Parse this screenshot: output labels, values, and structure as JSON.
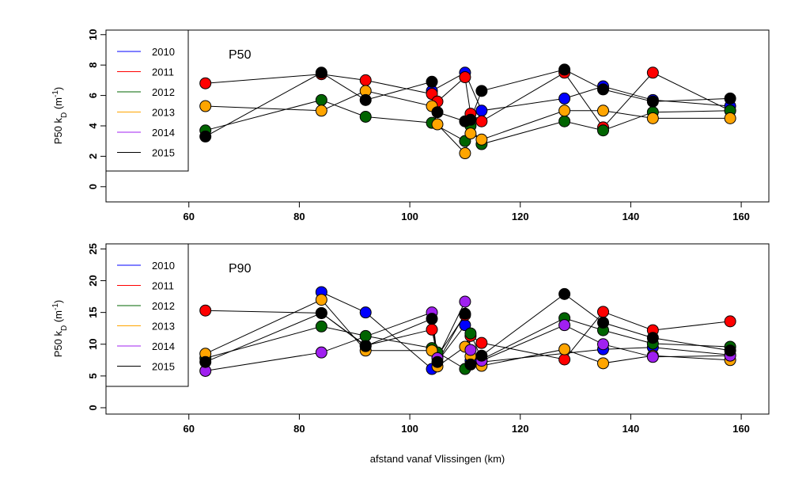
{
  "chart_data": [
    {
      "type": "scatter",
      "title": "",
      "annotation": "P50",
      "ylabel_main": "P50 k",
      "ylabel_sub": "D",
      "ylabel_unit": " (m",
      "ylabel_exp": "-1",
      "ylabel_close": ")",
      "xlabel": "",
      "xlim": [
        45,
        165
      ],
      "ylim": [
        -1,
        10.3
      ],
      "x_ticks": [
        60,
        80,
        100,
        120,
        140,
        160
      ],
      "y_ticks": [
        0,
        2,
        4,
        6,
        8,
        10
      ],
      "legend_position": "top-left",
      "connectors": "black line from each point to the next point of the same series",
      "series": [
        {
          "name": "2010",
          "color": "#0000ff",
          "points": [
            [
              104,
              6.3
            ],
            [
              110,
              7.5
            ],
            [
              113,
              5.0
            ],
            [
              128,
              5.8
            ],
            [
              135,
              6.6
            ],
            [
              144,
              5.7
            ],
            [
              158,
              5.3
            ]
          ]
        },
        {
          "name": "2011",
          "color": "#ff0000",
          "points": [
            [
              63,
              6.8
            ],
            [
              84,
              7.4
            ],
            [
              92,
              7.0
            ],
            [
              104,
              6.1
            ],
            [
              105,
              5.6
            ],
            [
              110,
              7.2
            ],
            [
              111,
              4.8
            ],
            [
              113,
              4.3
            ],
            [
              128,
              7.5
            ],
            [
              135,
              3.9
            ],
            [
              144,
              7.5
            ],
            [
              158,
              5.0
            ]
          ]
        },
        {
          "name": "2012",
          "color": "#006400",
          "points": [
            [
              63,
              3.7
            ],
            [
              84,
              5.7
            ],
            [
              92,
              4.6
            ],
            [
              104,
              4.2
            ],
            [
              110,
              3.0
            ],
            [
              111,
              4.0
            ],
            [
              113,
              2.8
            ],
            [
              128,
              4.3
            ],
            [
              135,
              3.7
            ],
            [
              144,
              4.9
            ],
            [
              158,
              5.0
            ]
          ]
        },
        {
          "name": "2013",
          "color": "#ffa500",
          "points": [
            [
              63,
              5.3
            ],
            [
              84,
              5.0
            ],
            [
              92,
              6.3
            ],
            [
              104,
              5.3
            ],
            [
              105,
              4.1
            ],
            [
              110,
              2.2
            ],
            [
              111,
              3.5
            ],
            [
              113,
              3.1
            ],
            [
              128,
              5.0
            ],
            [
              135,
              5.0
            ],
            [
              144,
              4.5
            ],
            [
              158,
              4.5
            ]
          ]
        },
        {
          "name": "2014",
          "color": "#a020f0",
          "points": []
        },
        {
          "name": "2015",
          "color": "#000000",
          "points": [
            [
              63,
              3.3
            ],
            [
              84,
              7.5
            ],
            [
              92,
              5.7
            ],
            [
              104,
              6.9
            ],
            [
              105,
              4.9
            ],
            [
              110,
              4.3
            ],
            [
              111,
              4.4
            ],
            [
              113,
              6.3
            ],
            [
              128,
              7.7
            ],
            [
              135,
              6.4
            ],
            [
              144,
              5.6
            ],
            [
              158,
              5.8
            ]
          ]
        }
      ]
    },
    {
      "type": "scatter",
      "title": "",
      "annotation": "P90",
      "ylabel_main": "P50 k",
      "ylabel_sub": "D",
      "ylabel_unit": " (m",
      "ylabel_exp": "-1",
      "ylabel_close": ")",
      "xlabel": "afstand vanaf Vlissingen (km)",
      "xlim": [
        45,
        165
      ],
      "ylim": [
        -1,
        25.8
      ],
      "x_ticks": [
        60,
        80,
        100,
        120,
        140,
        160
      ],
      "y_ticks": [
        0,
        5,
        10,
        15,
        20,
        25
      ],
      "legend_position": "top-left",
      "connectors": "black line from each point to the next point of the same series",
      "series": [
        {
          "name": "2010",
          "color": "#0000ff",
          "points": [
            [
              84,
              18.2
            ],
            [
              92,
              15.0
            ],
            [
              104,
              6.1
            ],
            [
              110,
              13.0
            ],
            [
              111,
              7.4
            ],
            [
              113,
              7.2
            ],
            [
              135,
              9.2
            ],
            [
              144,
              9.5
            ],
            [
              158,
              8.3
            ]
          ]
        },
        {
          "name": "2011",
          "color": "#ff0000",
          "points": [
            [
              63,
              15.3
            ],
            [
              84,
              14.9
            ],
            [
              92,
              9.8
            ],
            [
              104,
              12.3
            ],
            [
              105,
              8.1
            ],
            [
              110,
              14.6
            ],
            [
              111,
              11.3
            ],
            [
              113,
              10.2
            ],
            [
              128,
              7.6
            ],
            [
              135,
              15.1
            ],
            [
              144,
              12.2
            ],
            [
              158,
              13.6
            ]
          ]
        },
        {
          "name": "2012",
          "color": "#006400",
          "points": [
            [
              63,
              7.8
            ],
            [
              84,
              12.8
            ],
            [
              92,
              11.3
            ],
            [
              104,
              9.4
            ],
            [
              105,
              8.7
            ],
            [
              110,
              6.1
            ],
            [
              111,
              11.7
            ],
            [
              113,
              7.6
            ],
            [
              128,
              14.1
            ],
            [
              135,
              12.2
            ],
            [
              144,
              10.1
            ],
            [
              158,
              9.6
            ]
          ]
        },
        {
          "name": "2013",
          "color": "#ffa500",
          "points": [
            [
              63,
              8.5
            ],
            [
              84,
              17.0
            ],
            [
              92,
              9.0
            ],
            [
              104,
              9.0
            ],
            [
              105,
              6.5
            ],
            [
              110,
              9.6
            ],
            [
              111,
              8.1
            ],
            [
              113,
              6.6
            ],
            [
              128,
              9.2
            ],
            [
              135,
              7.0
            ],
            [
              144,
              8.2
            ],
            [
              158,
              7.5
            ]
          ]
        },
        {
          "name": "2014",
          "color": "#a020f0",
          "points": [
            [
              63,
              5.8
            ],
            [
              84,
              8.7
            ],
            [
              104,
              15.0
            ],
            [
              105,
              7.8
            ],
            [
              110,
              16.7
            ],
            [
              111,
              9.1
            ],
            [
              113,
              7.4
            ],
            [
              128,
              13.0
            ],
            [
              135,
              10.0
            ],
            [
              144,
              8.0
            ],
            [
              158,
              8.2
            ]
          ]
        },
        {
          "name": "2015",
          "color": "#000000",
          "points": [
            [
              63,
              7.2
            ],
            [
              84,
              14.9
            ],
            [
              92,
              9.7
            ],
            [
              104,
              14.0
            ],
            [
              105,
              7.2
            ],
            [
              110,
              14.8
            ],
            [
              111,
              6.8
            ],
            [
              113,
              8.2
            ],
            [
              128,
              17.9
            ],
            [
              135,
              13.4
            ],
            [
              144,
              11.0
            ],
            [
              158,
              9.0
            ]
          ]
        }
      ]
    }
  ]
}
